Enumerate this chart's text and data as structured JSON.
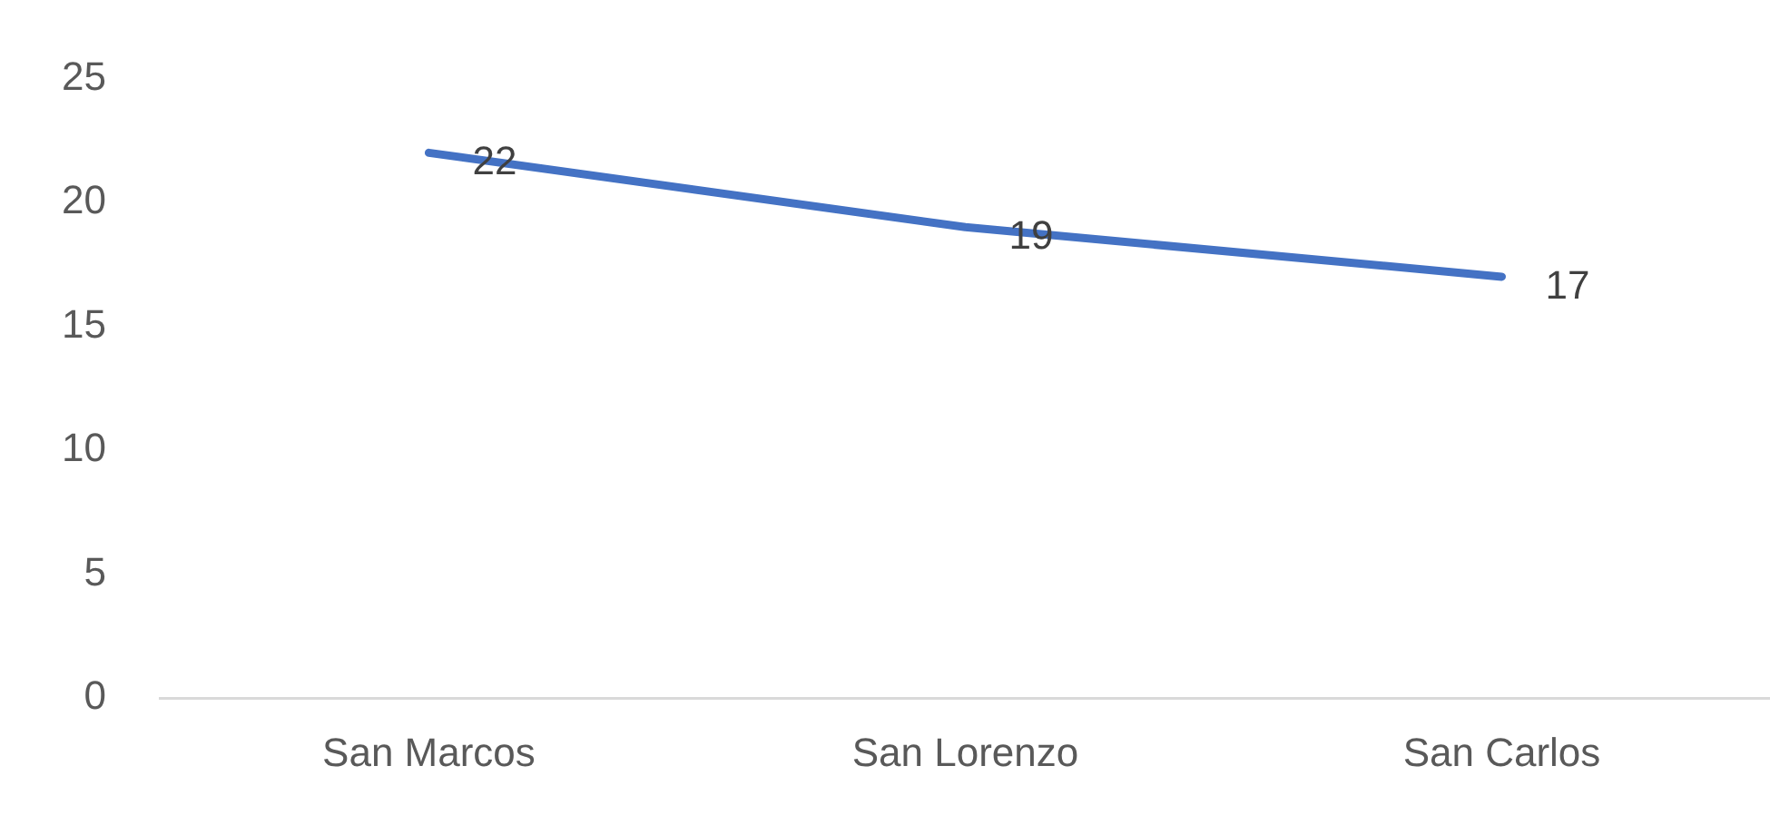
{
  "chart_data": {
    "type": "line",
    "categories": [
      "San Marcos",
      "San Lorenzo",
      "San Carlos"
    ],
    "series": [
      {
        "color": "#4472c4",
        "values": [
          22,
          19,
          17
        ]
      }
    ],
    "ylim": [
      0,
      25
    ],
    "yticks": [
      0,
      5,
      10,
      15,
      20,
      25
    ],
    "grid": false,
    "legend": false,
    "marker": "none",
    "data_labels": true
  }
}
